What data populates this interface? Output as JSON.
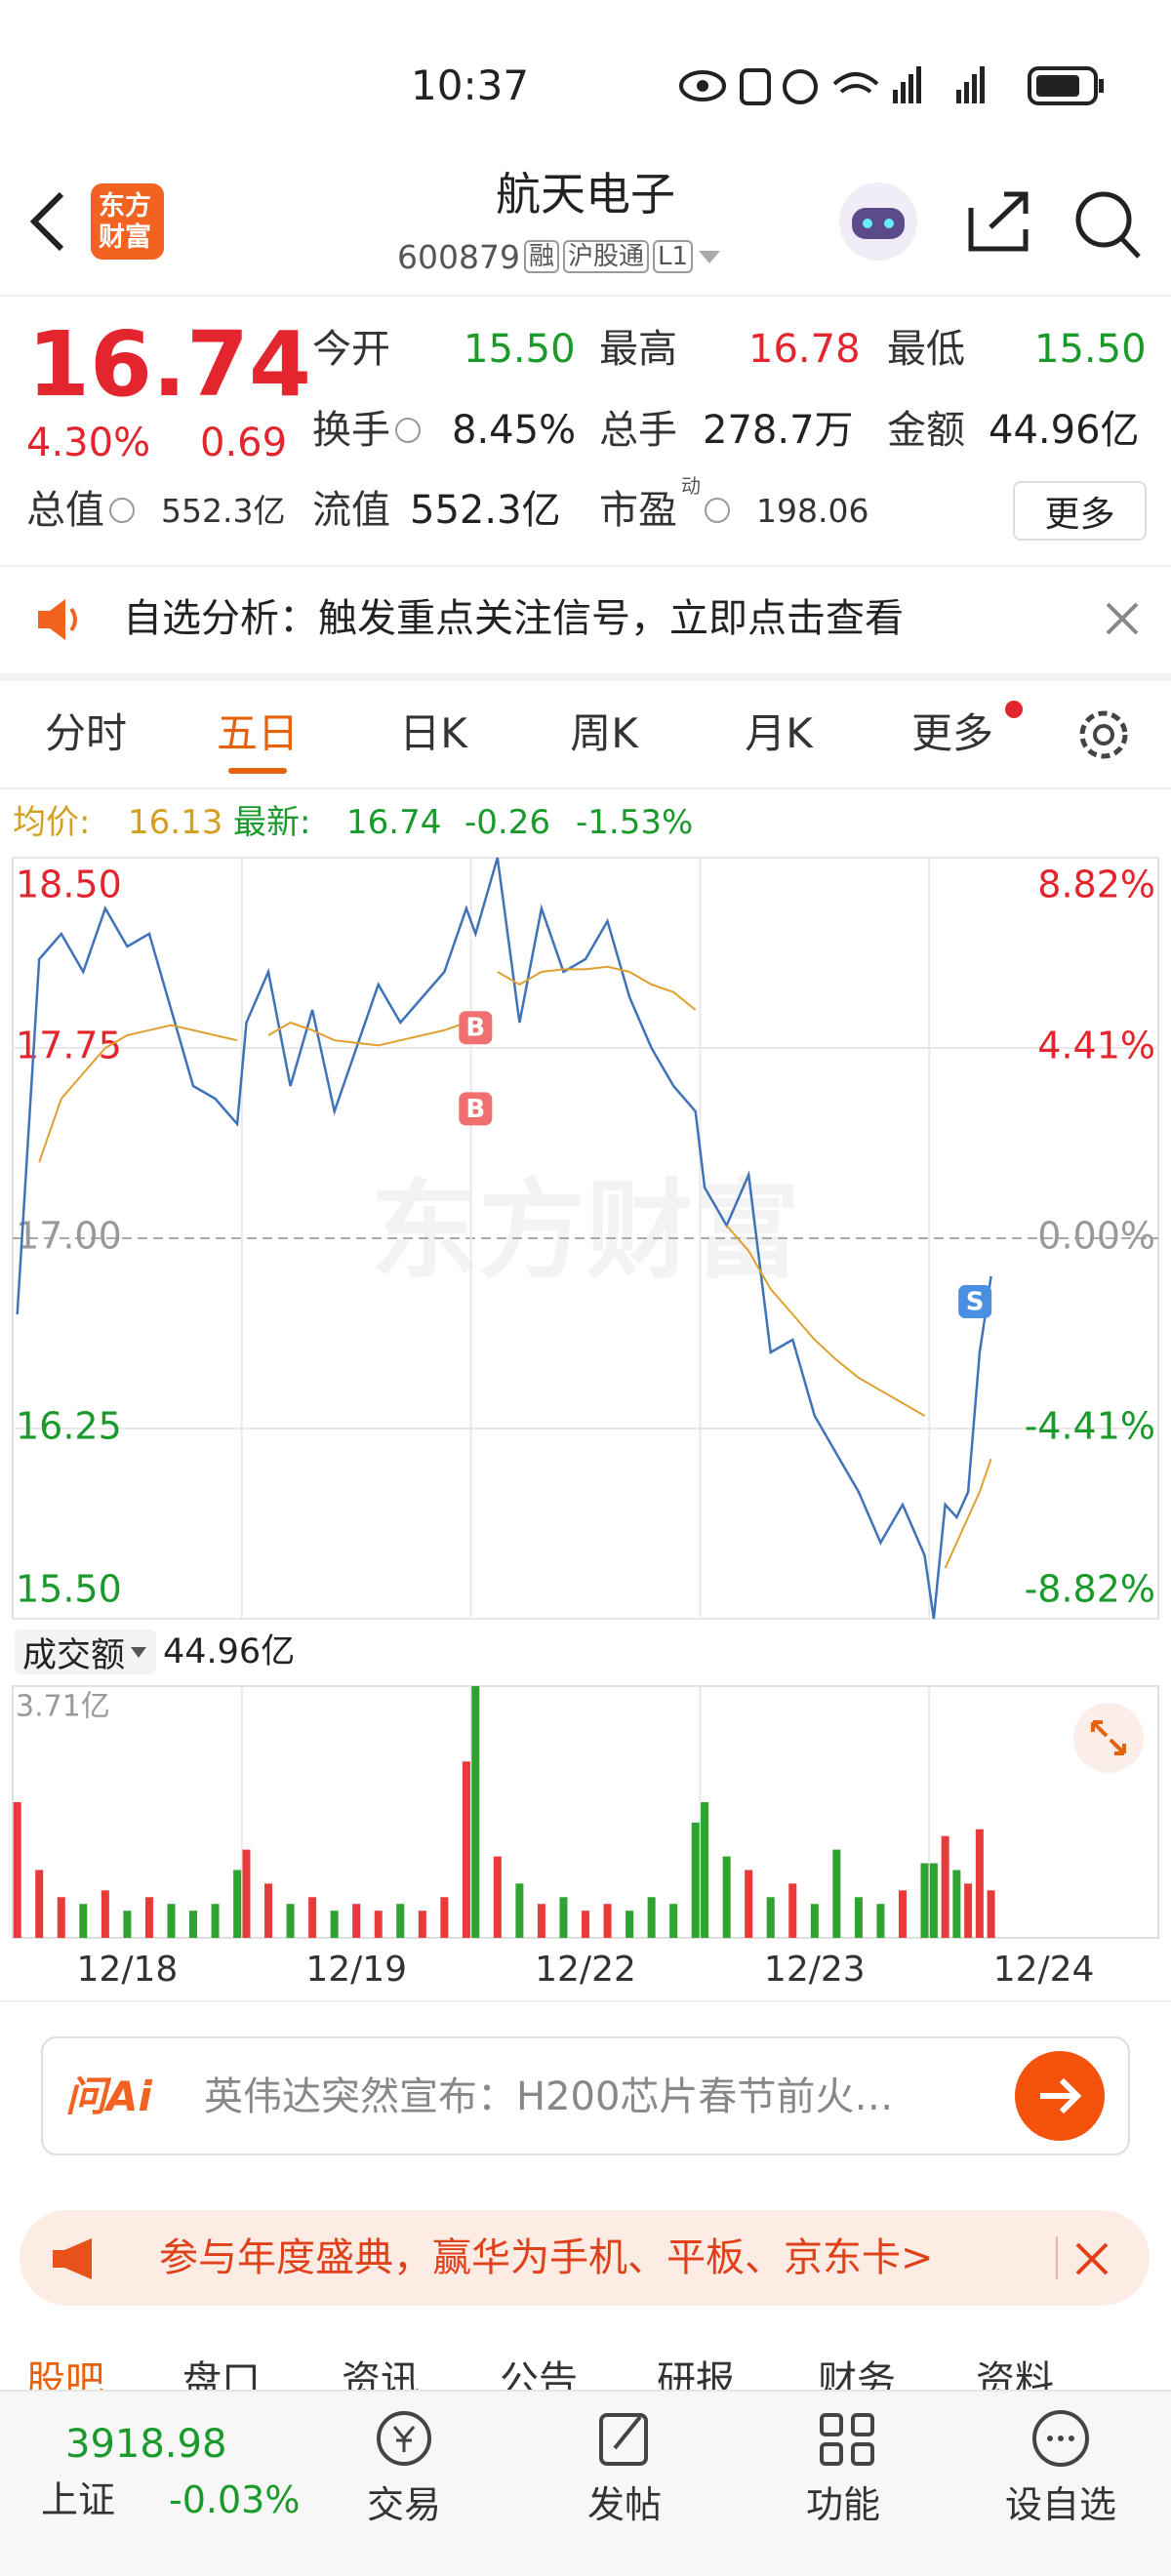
{
  "status_bar": {
    "time": "10:37"
  },
  "header": {
    "logo": [
      "东方",
      "财富"
    ],
    "title": "航天电子",
    "code": "600879",
    "badges": [
      "融",
      "沪股通",
      "L1"
    ]
  },
  "quote": {
    "price": "16.74",
    "change_pct": "4.30%",
    "change": "0.69",
    "pe_sup": "动",
    "more": "更多",
    "stats": [
      {
        "label": "今开",
        "value": "15.50"
      },
      {
        "label": "最高",
        "value": "16.78"
      },
      {
        "label": "最低",
        "value": "15.50"
      },
      {
        "label": "换手",
        "value": "8.45%"
      },
      {
        "label": "总手",
        "value": "278.7万"
      },
      {
        "label": "金额",
        "value": "44.96亿"
      },
      {
        "label": "总值",
        "value": "552.3亿"
      },
      {
        "label": "流值",
        "value": "552.3亿"
      },
      {
        "label": "市盈",
        "value": "198.06"
      }
    ]
  },
  "notice": {
    "text": "自选分析：触发重点关注信号，立即点击查看"
  },
  "tabs": {
    "items": [
      "分时",
      "五日",
      "日K",
      "周K",
      "月K",
      "更多"
    ],
    "active": 1
  },
  "chart_info": {
    "avg_label": "均价:",
    "avg": "16.13",
    "last_label": "最新:",
    "last": "16.74",
    "change": "-0.26",
    "pct": "-1.53%"
  },
  "chart_data": {
    "type": "line",
    "watermark": "东方财富",
    "x": [
      0.02,
      0.116,
      0.212,
      0.308,
      0.404,
      0.5,
      0.596,
      0.692,
      0.788,
      0.884,
      0.98,
      1.02,
      1.116,
      1.212,
      1.308,
      1.404,
      1.5,
      1.596,
      1.692,
      1.788,
      1.884,
      1.98,
      2.02,
      2.116,
      2.212,
      2.308,
      2.404,
      2.5,
      2.596,
      2.692,
      2.788,
      2.884,
      2.98,
      3.02,
      3.116,
      3.212,
      3.308,
      3.404,
      3.5,
      3.596,
      3.692,
      3.788,
      3.884,
      3.98,
      4.02,
      4.07,
      4.12,
      4.17,
      4.22,
      4.27
    ],
    "series": [
      {
        "color": "#3f73b8",
        "values": [
          16.7,
          18.1,
          18.2,
          18.05,
          18.3,
          18.15,
          18.2,
          17.9,
          17.6,
          17.55,
          17.45,
          17.85,
          18.05,
          17.6,
          17.9,
          17.5,
          17.75,
          18.0,
          17.85,
          17.95,
          18.05,
          18.3,
          18.2,
          18.5,
          17.85,
          18.3,
          18.05,
          18.1,
          18.25,
          17.95,
          17.75,
          17.6,
          17.5,
          17.2,
          17.05,
          17.25,
          16.55,
          16.6,
          16.3,
          16.15,
          16.0,
          15.8,
          15.95,
          15.75,
          15.5,
          15.95,
          15.9,
          16.0,
          16.55,
          16.85
        ]
      },
      {
        "color": "#e0a030",
        "values": [
          null,
          17.3,
          17.55,
          17.65,
          17.75,
          17.8,
          17.82,
          17.84,
          17.82,
          17.8,
          17.78,
          null,
          17.8,
          17.85,
          17.82,
          17.78,
          17.77,
          17.76,
          17.78,
          17.8,
          17.82,
          17.85,
          null,
          18.05,
          18.0,
          18.05,
          18.06,
          18.06,
          18.07,
          18.05,
          18.0,
          17.97,
          17.9,
          null,
          17.05,
          16.95,
          16.8,
          16.7,
          16.6,
          16.52,
          16.45,
          16.4,
          16.35,
          16.3,
          null,
          15.7,
          15.8,
          15.9,
          16.0,
          16.13
        ]
      }
    ],
    "xlim": [
      0,
      5
    ],
    "xticks": [
      {
        "value": 0.5,
        "label": "12/18"
      },
      {
        "value": 1.5,
        "label": "12/19"
      },
      {
        "value": 2.5,
        "label": "12/22"
      },
      {
        "value": 3.5,
        "label": "12/23"
      },
      {
        "value": 4.5,
        "label": "12/24"
      }
    ],
    "ylim": [
      15.5,
      18.5
    ],
    "yticks": [
      {
        "value": 18.5,
        "label": "18.50"
      },
      17.75,
      {
        "value": 17,
        "label": "17.00"
      },
      16.25,
      {
        "value": 15.5,
        "label": "15.50"
      }
    ],
    "y2lim": [
      -8.82,
      8.82
    ],
    "y2ticks": [
      {
        "value": 8.82,
        "label": "8.82%"
      },
      {
        "value": 4.41,
        "label": "4.41%"
      },
      {
        "value": 0,
        "label": "0.00%"
      },
      {
        "value": -4.41,
        "label": "-4.41%"
      },
      {
        "value": -8.82,
        "label": "-8.82%"
      }
    ],
    "annotations": [
      {
        "text": "B",
        "x": 2.02,
        "y": 17.83,
        "color": "#f07070"
      },
      {
        "text": "B",
        "x": 2.02,
        "y": 17.51,
        "color": "#f07070"
      },
      {
        "text": "S",
        "x": 4.2,
        "y": 16.75,
        "color": "#4a90e2"
      }
    ],
    "volume": {
      "up_color": "#e83a3a",
      "down_color": "#2fa32f",
      "ylim": [
        0,
        3.71
      ],
      "yticks": [
        {
          "value": 3.71,
          "label": "3.71亿"
        }
      ],
      "values": [
        2.0,
        1.0,
        0.6,
        0.5,
        0.7,
        0.4,
        0.6,
        0.5,
        0.4,
        0.5,
        1.0,
        1.3,
        0.8,
        0.5,
        0.6,
        0.4,
        0.5,
        0.4,
        0.5,
        0.4,
        0.6,
        2.6,
        3.71,
        1.2,
        0.8,
        0.5,
        0.6,
        0.4,
        0.5,
        0.4,
        0.6,
        0.5,
        1.7,
        2.0,
        1.2,
        1.0,
        0.6,
        0.8,
        0.5,
        1.3,
        0.6,
        0.5,
        0.7,
        1.1,
        1.1,
        1.5,
        1.0,
        0.8,
        1.6,
        0.7
      ]
    }
  },
  "volume_info": {
    "label": "成交额",
    "value": "44.96亿"
  },
  "ai_bar": {
    "logo": "问Ai",
    "text": "英伟达突然宣布：H200芯片春节前火…"
  },
  "promo": {
    "text": "参与年度盛典，赢华为手机、平板、京东卡>"
  },
  "section_tabs": [
    "股吧",
    "盘口",
    "资讯",
    "公告",
    "研报",
    "财务",
    "资料"
  ],
  "bottom_nav": {
    "index_value": "3918.98",
    "index_name": "上证",
    "index_change": "-0.03%",
    "items": [
      "交易",
      "发帖",
      "功能",
      "设自选"
    ]
  }
}
